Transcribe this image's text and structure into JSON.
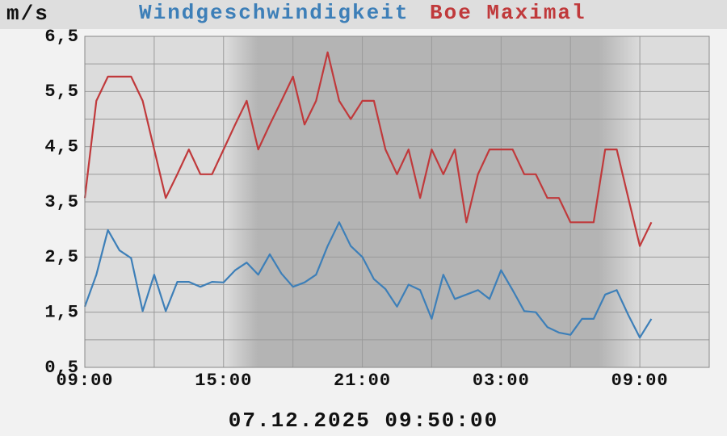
{
  "chart_data": {
    "type": "line",
    "y_label": "m/s",
    "timestamp": "07.12.2025 09:50:00",
    "x": [
      0,
      0.5,
      1,
      1.5,
      2,
      2.5,
      3,
      3.5,
      4,
      4.5,
      5,
      5.5,
      6,
      6.5,
      7,
      7.5,
      8,
      8.5,
      9,
      9.5,
      10,
      10.5,
      11,
      11.5,
      12,
      12.5,
      13,
      13.5,
      14,
      14.5,
      15,
      15.5,
      16,
      16.5,
      17,
      17.5,
      18,
      18.5,
      19,
      19.5,
      20,
      20.5,
      21,
      21.5,
      22,
      22.5,
      23,
      23.5,
      24,
      24.5
    ],
    "series": [
      {
        "name": "Windgeschwindigkeit",
        "color": "#3d7fb8",
        "values": [
          1.6,
          2.18,
          2.99,
          2.62,
          2.48,
          1.52,
          2.18,
          1.52,
          2.05,
          2.05,
          1.96,
          2.05,
          2.04,
          2.26,
          2.4,
          2.18,
          2.55,
          2.2,
          1.96,
          2.04,
          2.18,
          2.7,
          3.13,
          2.7,
          2.5,
          2.1,
          1.92,
          1.6,
          2.0,
          1.9,
          1.38,
          2.18,
          1.74,
          1.82,
          1.9,
          1.74,
          2.26,
          1.9,
          1.52,
          1.5,
          1.23,
          1.13,
          1.09,
          1.38,
          1.38,
          1.82,
          1.9,
          1.45,
          1.04,
          1.38
        ]
      },
      {
        "name": "Boe Maximal",
        "color": "#c0393b",
        "values": [
          3.57,
          5.33,
          5.77,
          5.77,
          5.77,
          5.33,
          4.45,
          3.57,
          4.0,
          4.45,
          4.0,
          4.0,
          4.45,
          4.9,
          5.33,
          4.45,
          4.9,
          5.33,
          5.77,
          4.9,
          5.33,
          6.21,
          5.33,
          5.0,
          5.33,
          5.33,
          4.45,
          4.0,
          4.45,
          3.57,
          4.45,
          4.0,
          4.45,
          3.13,
          4.0,
          4.45,
          4.45,
          4.45,
          4.0,
          4.0,
          3.57,
          3.57,
          3.13,
          3.13,
          3.13,
          4.45,
          4.45,
          3.57,
          2.7,
          3.13
        ]
      }
    ],
    "xlim": [
      0,
      27
    ],
    "xticks": [
      {
        "value": 0,
        "label": "09:00"
      },
      {
        "value": 6,
        "label": "15:00"
      },
      {
        "value": 12,
        "label": "21:00"
      },
      {
        "value": 18,
        "label": "03:00"
      },
      {
        "value": 24,
        "label": "09:00"
      }
    ],
    "x_minor_ticks": [
      3,
      9,
      15,
      21
    ],
    "ylim": [
      0.5,
      6.5
    ],
    "yticks": [
      {
        "value": 0.5,
        "label": "0,5"
      },
      {
        "value": 1.5,
        "label": "1,5"
      },
      {
        "value": 2.5,
        "label": "2,5"
      },
      {
        "value": 3.5,
        "label": "3,5"
      },
      {
        "value": 4.5,
        "label": "4,5"
      },
      {
        "value": 5.5,
        "label": "5,5"
      },
      {
        "value": 6.5,
        "label": "6,5"
      }
    ],
    "y_minor_ticks": [
      1,
      2,
      3,
      4,
      5,
      6
    ],
    "grid": true
  }
}
